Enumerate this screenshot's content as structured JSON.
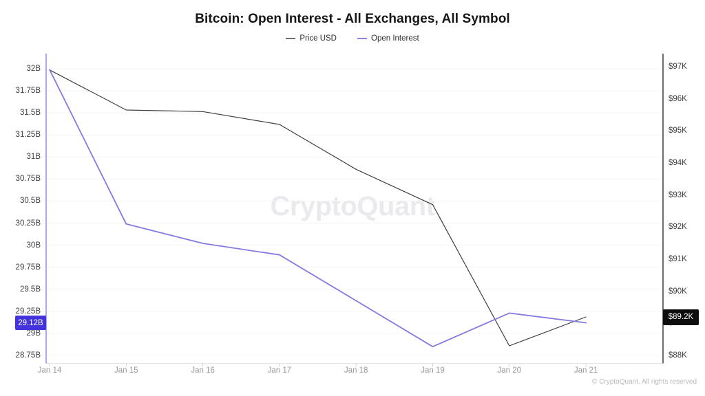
{
  "title": "Bitcoin: Open Interest - All Exchanges, All Symbol",
  "legend": [
    {
      "label": "Price USD",
      "color": "#6e6e6e"
    },
    {
      "label": "Open Interest",
      "color": "#8a80e8"
    }
  ],
  "watermark": "CryptoQuant",
  "footer": "© CryptoQuant. All rights reserved",
  "badges": {
    "open_interest_last": {
      "label": "29.12B",
      "bg": "#4533db"
    },
    "price_last": {
      "label": "$89.2K",
      "bg": "#0d0d0d"
    }
  },
  "chart_data": {
    "type": "line",
    "title": "Bitcoin: Open Interest - All Exchanges, All Symbol",
    "categories": [
      "Jan 14",
      "Jan 15",
      "Jan 16",
      "Jan 17",
      "Jan 18",
      "Jan 19",
      "Jan 20",
      "Jan 21"
    ],
    "series": [
      {
        "name": "Price USD",
        "axis": "right",
        "color": "#3d3d3d",
        "width": 1.2,
        "unit": "thousand USD",
        "values": [
          96.9,
          95.65,
          95.6,
          95.2,
          93.8,
          92.7,
          88.3,
          89.2
        ]
      },
      {
        "name": "Open Interest",
        "axis": "left",
        "color": "#8379e2",
        "width": 1.8,
        "unit": "billion USD",
        "values": [
          31.99,
          30.24,
          30.02,
          29.89,
          29.37,
          28.85,
          29.23,
          29.12
        ]
      }
    ],
    "left_axis": {
      "ticks": [
        "32B",
        "31.75B",
        "31.5B",
        "31.25B",
        "31B",
        "30.75B",
        "30.5B",
        "30.25B",
        "30B",
        "29.75B",
        "29.5B",
        "29.25B",
        "29B",
        "28.75B"
      ],
      "max": 32,
      "min": 28.75,
      "step": 0.25,
      "line_color": "#978ee8"
    },
    "right_axis": {
      "ticks": [
        "$97K",
        "$96K",
        "$95K",
        "$94K",
        "$93K",
        "$92K",
        "$91K",
        "$90K",
        "$89K",
        "$88K"
      ],
      "max": 97,
      "min": 88,
      "step": 1,
      "line_color": "#4a4a4a"
    },
    "grid": "horizontal",
    "legend_position": "top",
    "last_value_labels": {
      "open_interest": "29.12B",
      "price": "$89.2K"
    }
  }
}
